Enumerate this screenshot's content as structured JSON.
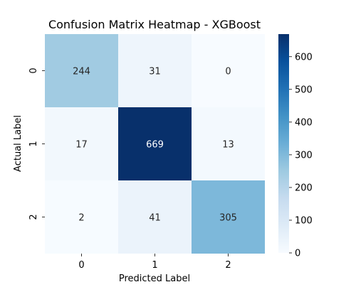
{
  "chart_data": {
    "type": "heatmap",
    "title": "Confusion Matrix Heatmap - XGBoost",
    "xlabel": "Predicted Label",
    "ylabel": "Actual Label",
    "x_categories": [
      "0",
      "1",
      "2"
    ],
    "y_categories": [
      "0",
      "1",
      "2"
    ],
    "values": [
      [
        244,
        31,
        0
      ],
      [
        17,
        669,
        13
      ],
      [
        2,
        41,
        305
      ]
    ],
    "colormap": "Blues",
    "colorbar": {
      "range": [
        0,
        669
      ],
      "ticks": [
        0,
        100,
        200,
        300,
        400,
        500,
        600
      ]
    },
    "colors": {
      "low": "#f7fbff",
      "high": "#08306b"
    }
  }
}
